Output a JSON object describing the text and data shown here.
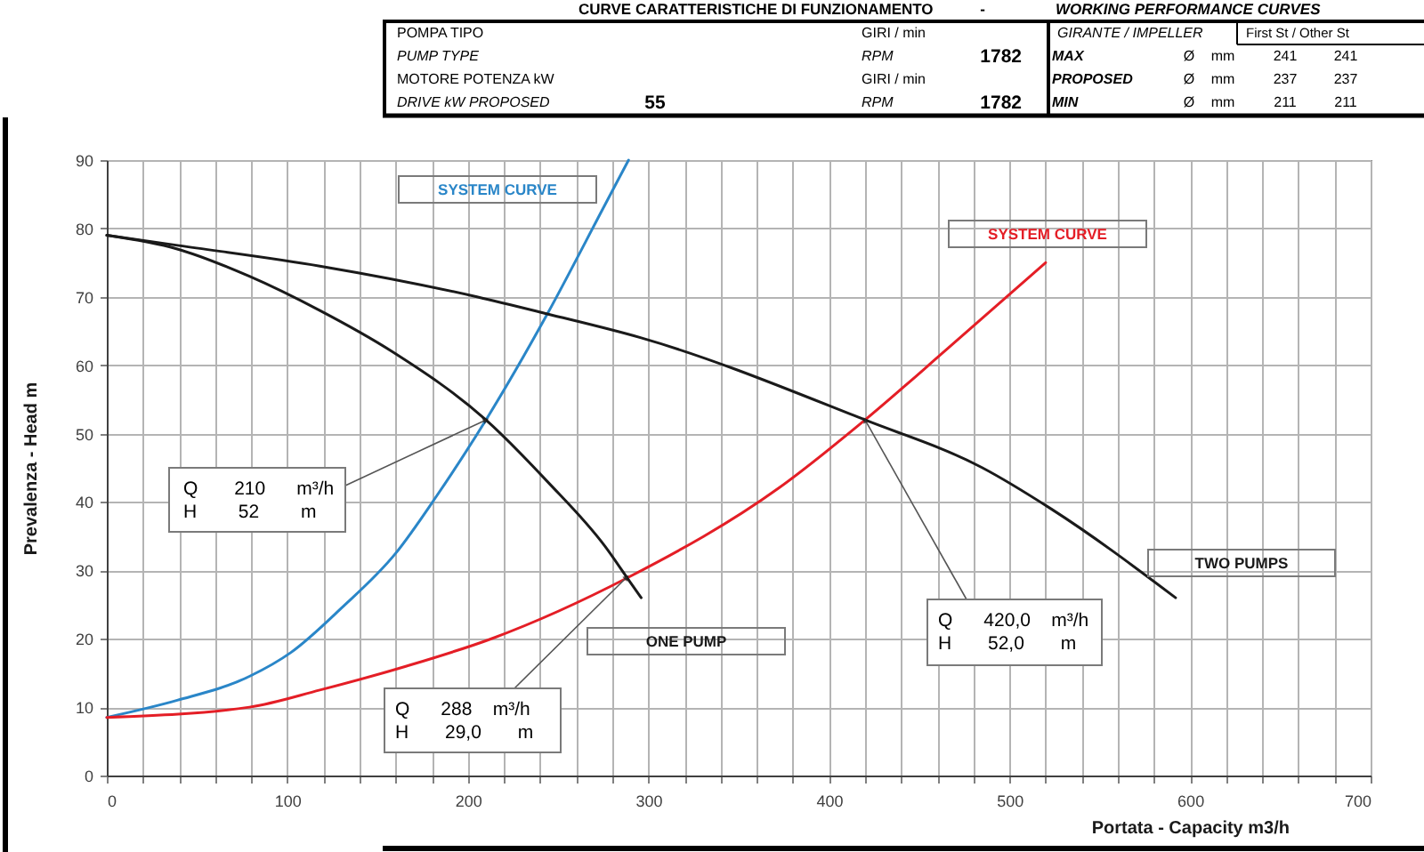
{
  "chart_data": {
    "type": "line",
    "title": "CURVE CARATTERISTICHE DI FUNZIONAMENTO",
    "subtitle": "WORKING PERFORMANCE CURVES",
    "xlabel": "Portata - Capacity m3/h",
    "ylabel": "Prevalenza - Head m",
    "xlim": [
      0,
      700
    ],
    "ylim": [
      0,
      90
    ],
    "xticks": [
      0,
      {
        "value": 20,
        "label": null
      },
      {
        "value": 40,
        "label": null
      },
      {
        "value": 60,
        "label": null
      },
      {
        "value": 80,
        "label": null
      },
      100,
      {
        "value": 120,
        "label": null
      },
      {
        "value": 140,
        "label": null
      },
      {
        "value": 160,
        "label": null
      },
      {
        "value": 180,
        "label": null
      },
      200,
      {
        "value": 220,
        "label": null
      },
      {
        "value": 240,
        "label": null
      },
      {
        "value": 260,
        "label": null
      },
      {
        "value": 280,
        "label": null
      },
      300,
      {
        "value": 320,
        "label": null
      },
      {
        "value": 340,
        "label": null
      },
      {
        "value": 360,
        "label": null
      },
      {
        "value": 380,
        "label": null
      },
      400,
      {
        "value": 420,
        "label": null
      },
      {
        "value": 440,
        "label": null
      },
      {
        "value": 460,
        "label": null
      },
      {
        "value": 480,
        "label": null
      },
      500,
      {
        "value": 520,
        "label": null
      },
      {
        "value": 540,
        "label": null
      },
      {
        "value": 560,
        "label": null
      },
      {
        "value": 580,
        "label": null
      },
      600,
      {
        "value": 620,
        "label": null
      },
      {
        "value": 640,
        "label": null
      },
      {
        "value": 660,
        "label": null
      },
      {
        "value": 680,
        "label": null
      },
      700
    ],
    "yticks": [
      0,
      10,
      20,
      30,
      40,
      50,
      60,
      70,
      80,
      90
    ],
    "grid": true,
    "series": [
      {
        "name": "SYSTEM CURVE",
        "color": "#2a86c8",
        "x": [
          0,
          39,
          79,
          102,
          130,
          160,
          183,
          210,
          244,
          276,
          289
        ],
        "values": [
          8.5,
          11,
          14.5,
          18,
          24.5,
          32.5,
          41,
          52,
          67.5,
          83.5,
          90
        ]
      },
      {
        "name": "SYSTEM CURVE",
        "color": "#e41e26",
        "x": [
          0,
          79,
          118,
          166,
          213,
          289,
          372,
          420,
          466,
          520
        ],
        "values": [
          8.5,
          10,
          12.5,
          16,
          20,
          29,
          42,
          52,
          62.5,
          75
        ]
      },
      {
        "name": "ONE PUMP",
        "color": "#1a1a1a",
        "x": [
          0,
          39,
          79,
          118,
          158,
          210,
          244,
          276,
          288,
          296
        ],
        "values": [
          79,
          77,
          73,
          68,
          62,
          52,
          43,
          33.5,
          29,
          26
        ]
      },
      {
        "name": "TWO PUMPS",
        "color": "#1a1a1a",
        "x": [
          0,
          40,
          118,
          205,
          244,
          296,
          420,
          485,
          523,
          592
        ],
        "values": [
          79,
          77.5,
          74.5,
          70,
          67.5,
          64,
          52,
          45,
          39,
          26
        ]
      }
    ],
    "annotations": [
      {
        "text": "Q 210 m³/h\nH 52 m",
        "x": 210,
        "y": 52
      },
      {
        "text": "Q 288 m³/h\nH 29,0 m",
        "x": 288,
        "y": 29
      },
      {
        "text": "Q 420,0 m³/h\nH 52,0 m",
        "x": 420,
        "y": 52
      },
      "-",
      "POMPA TIPO",
      "GIRI / min",
      "GIRANTE / IMPELLER",
      "First St / Other St",
      "PUMP TYPE",
      "RPM",
      "1782",
      "MAX",
      "Ø",
      "mm",
      "241",
      "241",
      "MOTORE POTENZA kW",
      "GIRI / min",
      "PROPOSED",
      "Ø",
      "mm",
      "237",
      "237",
      "DRIVE kW PROPOSED",
      "55",
      "RPM",
      "1782",
      "MIN",
      "Ø",
      "mm",
      "211",
      "211"
    ]
  }
}
